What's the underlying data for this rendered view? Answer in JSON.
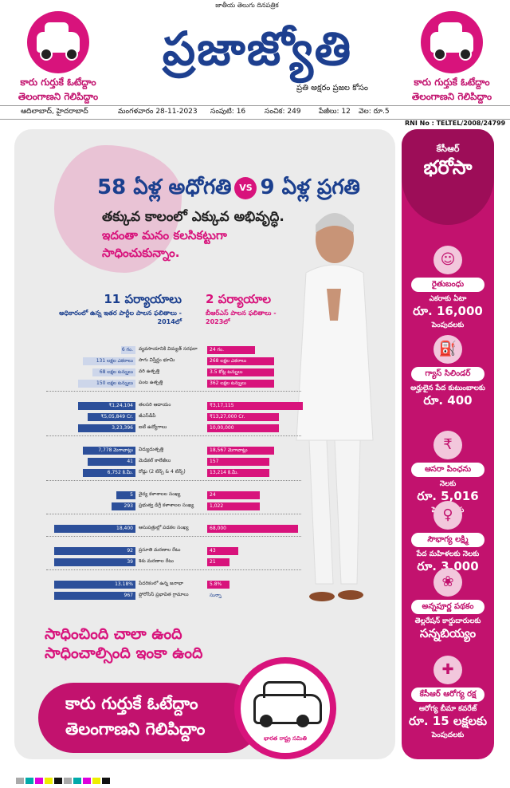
{
  "masthead": {
    "tagline": "జాతీయ తెలుగు దినపత్రిక",
    "logo": "ప్రజాజ్యోతి",
    "logo_sub": "ప్రతి అక్షరం ప్రజల కోసం",
    "ear_line1": "కారు గుర్తుకే ఓటేద్దాం",
    "ear_line2": "తెలంగాణని గెలిపిద్దాం",
    "edition": "ఆదిలాబాద్, హైదరాబాద్",
    "date": "మంగళవారం 28-11-2023",
    "volume": "సంపుటి: 16",
    "issue": "సంచిక: 249",
    "pages": "పేజీలు: 12",
    "price": "వెల: రూ.5",
    "rni": "RNI No : TELTEL/2008/24799"
  },
  "headline": {
    "left": "58 ఏళ్ల అధోగతి",
    "vs": "VS",
    "right": "9 ఏళ్ల ప్రగతి",
    "sub1": "తక్కువ కాలంలో ఎక్కువ అభివృద్ధి.",
    "sub2": "ఇదంతా మనం కలసికట్టుగా",
    "sub3": "సాధించుకున్నాం."
  },
  "columns": {
    "left_head": "11 పర్యాయాలు",
    "left_sub": "అధికారంలో ఉన్న ఇతర పార్టీల పాలన ఫలితాలు - 2014లో",
    "right_head": "2 పర్యాయాల",
    "right_sub": "బీఆర్ఎస్ పాలన ఫలితాలు - 2023లో"
  },
  "comparison": [
    {
      "label": "వ్యవసాయానికి విద్యుత్ సరఫరా",
      "left": "6 గం.",
      "right": "24 గం.",
      "lv": 0.05,
      "rv": 0.2,
      "light": true
    },
    {
      "label": "సాగు విస్తీర్ణం భూమి",
      "left": "131 లక్షల ఎకరాలు",
      "right": "268 లక్షల ఎకరాలు",
      "lv": 0.22,
      "rv": 0.28,
      "light": true
    },
    {
      "label": "వరి ఉత్పత్తి",
      "left": "68 లక్షల టన్నులు",
      "right": "3.5 కోట్ల టన్నులు",
      "lv": 0.18,
      "rv": 0.28,
      "light": true
    },
    {
      "label": "పంట ఉత్పత్తి",
      "left": "150 లక్షల టన్నులు",
      "right": "362 లక్షల టన్నులు",
      "lv": 0.24,
      "rv": 0.28,
      "light": true
    },
    {
      "label": "తలసరి ఆదాయం",
      "left": "₹1,24,104",
      "right": "₹3,17,115",
      "lv": 0.24,
      "rv": 0.4
    },
    {
      "label": "జీఎస్‌డీపీ",
      "left": "₹5,05,849 Cr.",
      "right": "₹13,27,000 Cr.",
      "lv": 0.2,
      "rv": 0.3
    },
    {
      "label": "ఐటీ ఉద్యోగాలు",
      "left": "3,23,396",
      "right": "10,00,000",
      "lv": 0.24,
      "rv": 0.3
    },
    {
      "label": "విద్యుదుత్పత్తి",
      "left": "7,778 మెగావాట్లు",
      "right": "18,567 మెగావాట్లు",
      "lv": 0.22,
      "rv": 0.28
    },
    {
      "label": "మెడికల్ కాలేజీలు",
      "left": "41",
      "right": "157",
      "lv": 0.2,
      "rv": 0.26
    },
    {
      "label": "రోడ్లు (2 లేన్స్ & 4 లేన్స్)",
      "left": "6,752 కి.మీ.",
      "right": "13,214 కి.మీ.",
      "lv": 0.22,
      "rv": 0.26
    },
    {
      "label": "వైద్య కళాశాలల సంఖ్య",
      "left": "5",
      "right": "24",
      "lv": 0.08,
      "rv": 0.22
    },
    {
      "label": "ప్రభుత్వ డిగ్రీ కళాశాలల సంఖ్య",
      "left": "293",
      "right": "1,022",
      "lv": 0.1,
      "rv": 0.22
    },
    {
      "label": "ఆసుపత్రుల్లో పడకల సంఖ్య",
      "left": "18,400",
      "right": "68,000",
      "lv": 0.34,
      "rv": 0.38
    },
    {
      "label": "ప్రసూతి మరణాల రేటు",
      "left": "92",
      "right": "43",
      "lv": 0.34,
      "rv": 0.13
    },
    {
      "label": "శిశు మరణాల రేటు",
      "left": "39",
      "right": "21",
      "lv": 0.34,
      "rv": 0.08
    },
    {
      "label": "పేదరికంలో ఉన్న జనాభా",
      "left": "13.18%",
      "right": "5.8%",
      "lv": 0.34,
      "rv": 0.09
    },
    {
      "label": "ఫ్లోరోసిస్ ప్రభావిత గ్రామాలు",
      "left": "967",
      "right": "సున్నా",
      "lv": 0.34,
      "rv": 0.0
    }
  ],
  "slogan": {
    "line1": "సాధించింది చాలా ఉంది",
    "line2": "సాధించాల్సింది ఇంకా ఉంది"
  },
  "band": {
    "line1": "కారు గుర్తుకే ఓటేద్దాం",
    "line2": "తెలంగాణని గెలిపిద్దాం",
    "car_caption": "భారత రాష్ట్ర సమితి"
  },
  "sidebar": {
    "head1": "కేసీఆర్",
    "head2": "భరోసా",
    "items": [
      {
        "title": "రైతుబంధు",
        "desc": "ఎకరాకు ఏటా",
        "big": "రూ. 16,000",
        "desc2": "పెంపుదలకు"
      },
      {
        "title": "గ్యాస్ సిలిండర్",
        "desc": "అర్హులైన పేద కుటుంబాలకు",
        "big": "రూ. 400",
        "desc2": ""
      },
      {
        "title": "ఆసరా పింఛను",
        "desc": "నెలకు",
        "big": "రూ. 5,016",
        "desc2": "పెంపుదలకు"
      },
      {
        "title": "సౌభాగ్య లక్ష్మి",
        "desc": "పేద మహిళలకు నెలకు",
        "big": "రూ. 3,000",
        "desc2": ""
      },
      {
        "title": "అన్నపూర్ణ పథకం",
        "desc": "తెల్లరేషన్ కార్డుదారులకు",
        "big": "సన్నబియ్యం",
        "desc2": ""
      },
      {
        "title": "కేసీఆర్ ఆరోగ్య రక్ష",
        "desc": "ఆరోగ్య బీమా కవరేజ్",
        "big": "రూ. 15 లక్షలకు",
        "desc2": "పెంపుదలకు"
      }
    ],
    "icons": [
      "farmer-icon",
      "gas-cylinder-icon",
      "pension-icon",
      "woman-icon",
      "rice-icon",
      "health-icon"
    ]
  }
}
